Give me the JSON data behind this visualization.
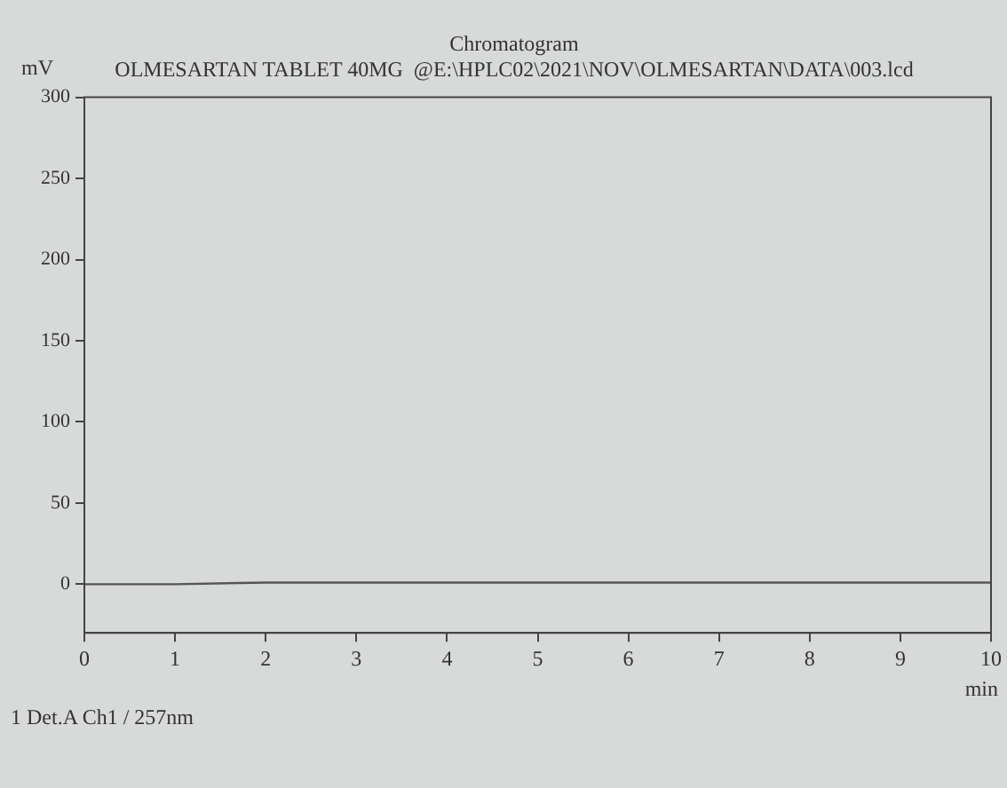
{
  "chart_data": {
    "type": "line",
    "title": "Chromatogram",
    "subtitle": "OLMESARTAN TABLET 40MG  @E:\\HPLC02\\2021\\NOV\\OLMESARTAN\\DATA\\003.lcd",
    "xlabel": "min",
    "ylabel": "mV",
    "x": [
      0,
      1,
      2,
      3,
      4,
      5,
      6,
      7,
      8,
      9,
      10
    ],
    "series": [
      {
        "color": "#555555",
        "values": [
          0,
          0,
          1,
          1,
          1,
          1,
          1,
          1,
          1,
          1,
          1
        ]
      }
    ],
    "xlim": [
      0,
      10
    ],
    "xticks": [
      0,
      1,
      2,
      3,
      4,
      5,
      6,
      7,
      8,
      9,
      10
    ],
    "ylim": [
      -30,
      300
    ],
    "yticks": [
      0,
      50,
      100,
      150,
      200,
      250,
      300
    ],
    "annotations": [
      "1 Det.A Ch1 / 257nm"
    ],
    "grid": false,
    "legend": false,
    "marker": "none",
    "line_style": "solid"
  }
}
